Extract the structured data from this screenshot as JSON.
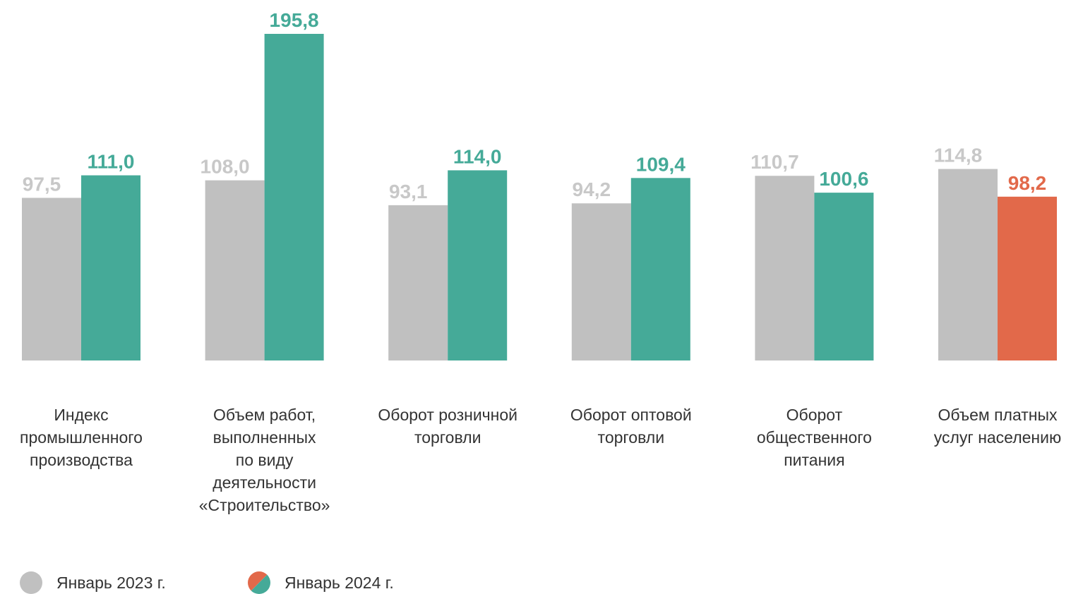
{
  "chart_data": {
    "type": "bar",
    "categories": [
      [
        "Индекс",
        "промышленного",
        "производства"
      ],
      [
        "Объем работ,",
        "выполненных",
        "по виду",
        "деятельности",
        "«Строительство»"
      ],
      [
        "Оборот розничной",
        "торговли"
      ],
      [
        "Оборот оптовой",
        "торговли"
      ],
      [
        "Оборот",
        "общественного",
        "питания"
      ],
      [
        "Объем платных",
        "услуг населению"
      ]
    ],
    "series": [
      {
        "name": "Январь 2023 г.",
        "color": "#c0c0c0",
        "label_color": "#c8c8c8",
        "values": [
          97.5,
          108.0,
          93.1,
          94.2,
          110.7,
          114.8
        ],
        "value_labels": [
          "97,5",
          "108,0",
          "93,1",
          "94,2",
          "110,7",
          "114,8"
        ]
      },
      {
        "name": "Январь 2024 г.",
        "color": "#45aa98",
        "colors": [
          "#45aa98",
          "#45aa98",
          "#45aa98",
          "#45aa98",
          "#45aa98",
          "#e2694a"
        ],
        "values": [
          111.0,
          195.8,
          114.0,
          109.4,
          100.6,
          98.2
        ],
        "value_labels": [
          "111,0",
          "195,8",
          "114,0",
          "109,4",
          "100,6",
          "98,2"
        ]
      }
    ]
  }
}
